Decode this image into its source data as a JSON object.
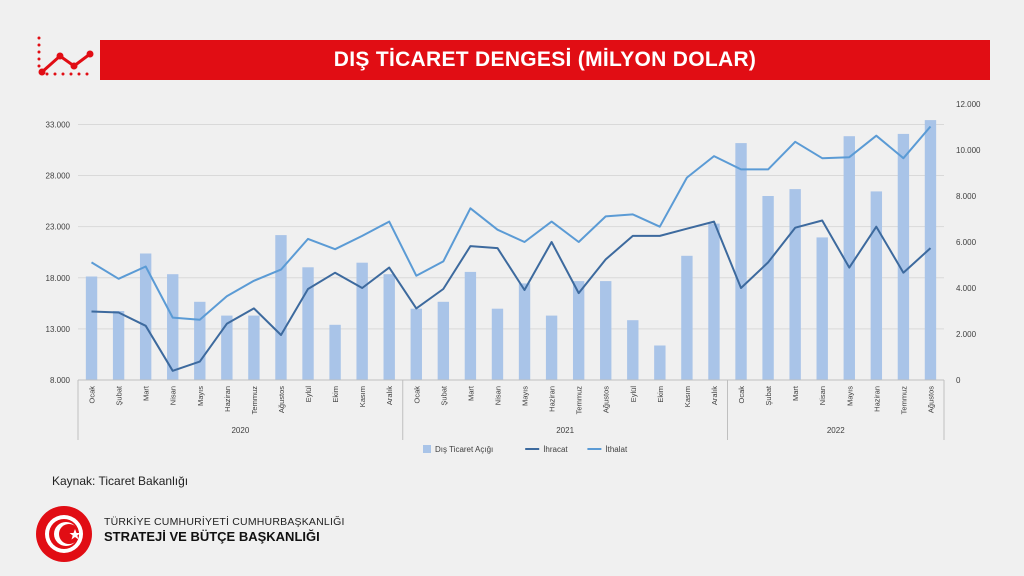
{
  "slide": {
    "title": "DIŞ TİCARET DENGESİ (MİLYON DOLAR)",
    "source": "Kaynak: Ticaret Bakanlığı",
    "org_line1": "TÜRKİYE CUMHURİYETİ CUMHURBAŞKANLIĞI",
    "org_line2": "STRATEJİ VE BÜTÇE BAŞKANLIĞI",
    "logo_text": "T.C. CUMHURBAŞKANLIĞI STRATEJİ VE BÜTÇE BAŞKANLIĞI"
  },
  "chart_data": {
    "type": "bar",
    "title": "",
    "categories": [
      "Ocak",
      "Şubat",
      "Mart",
      "Nisan",
      "Mayıs",
      "Haziran",
      "Temmuz",
      "Ağustos",
      "Eylül",
      "Ekim",
      "Kasım",
      "Aralık",
      "Ocak",
      "Şubat",
      "Mart",
      "Nisan",
      "Mayıs",
      "Haziran",
      "Temmuz",
      "Ağustos",
      "Eylül",
      "Ekim",
      "Kasım",
      "Aralık",
      "Ocak",
      "Şubat",
      "Mart",
      "Nisan",
      "Mayıs",
      "Haziran",
      "Temmuz",
      "Ağustos"
    ],
    "groups": [
      {
        "label": "2020",
        "count": 12
      },
      {
        "label": "2021",
        "count": 12
      },
      {
        "label": "2022",
        "count": 8
      }
    ],
    "left_axis": {
      "ylim": [
        8000,
        35000
      ],
      "ticks": [
        8000,
        13000,
        18000,
        23000,
        28000,
        33000
      ],
      "tick_labels": [
        "8.000",
        "13.000",
        "18.000",
        "23.000",
        "28.000",
        "33.000"
      ]
    },
    "right_axis": {
      "ylim": [
        0,
        12000
      ],
      "ticks": [
        0,
        2000,
        4000,
        6000,
        8000,
        10000,
        12000
      ],
      "tick_labels": [
        "0",
        "2.000",
        "4.000",
        "6.000",
        "8.000",
        "10.000",
        "12.000"
      ]
    },
    "series": [
      {
        "name": "Dış Ticaret Açığı",
        "type": "bar",
        "axis": "right",
        "color": "#a9c4e8",
        "values": [
          4500,
          3000,
          5500,
          4600,
          3400,
          2800,
          2800,
          6300,
          4900,
          2400,
          5100,
          4600,
          3100,
          3400,
          4700,
          3100,
          4200,
          2800,
          4300,
          4300,
          2600,
          1500,
          5400,
          6800,
          10300,
          8000,
          8300,
          6200,
          10600,
          8200,
          10700,
          11300
        ]
      },
      {
        "name": "İhracat",
        "type": "line",
        "axis": "left",
        "color": "#3d6a9e",
        "values": [
          14700,
          14600,
          13300,
          8900,
          9800,
          13500,
          15000,
          12400,
          16900,
          18500,
          17000,
          19000,
          15000,
          16900,
          21100,
          20900,
          16800,
          21500,
          16500,
          19800,
          22100,
          22100,
          22800,
          23500,
          17000,
          19500,
          22900,
          23600,
          19000,
          23000,
          18500,
          20900
        ]
      },
      {
        "name": "İthalat",
        "type": "line",
        "axis": "left",
        "color": "#5b9bd5",
        "values": [
          19500,
          17900,
          19100,
          14100,
          13900,
          16200,
          17700,
          18800,
          21800,
          20800,
          22100,
          23500,
          18200,
          19600,
          24800,
          22700,
          21500,
          23500,
          21500,
          24000,
          24200,
          23000,
          27800,
          29900,
          28600,
          28600,
          31300,
          29700,
          29800,
          31900,
          29700,
          32800
        ]
      }
    ],
    "legend_position": "bottom",
    "grid": true
  }
}
